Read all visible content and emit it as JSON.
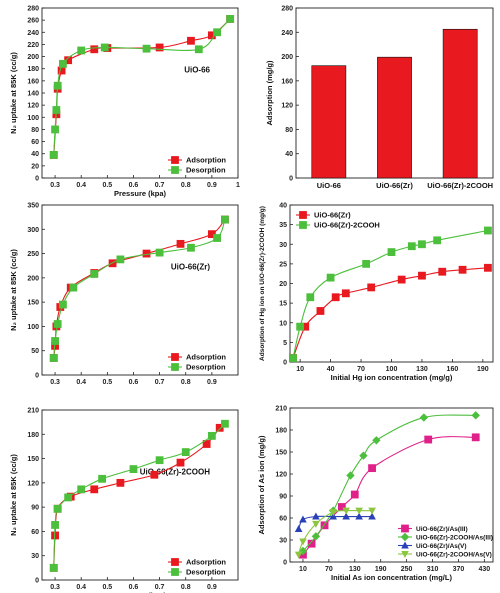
{
  "figure_caption": "",
  "chart_data": [
    {
      "id": "iso1",
      "type": "line",
      "annotation": "UiO-66",
      "xlabel": "Pressure (kpa)",
      "ylabel": "N₂ uptake at 85K (cc/g)",
      "xlim": [
        0.25,
        1.0
      ],
      "ylim": [
        0,
        280
      ],
      "xticks": [
        0.3,
        0.4,
        0.5,
        0.6,
        0.7,
        0.8,
        0.9,
        1.0
      ],
      "yticks": [
        0,
        20,
        40,
        60,
        80,
        100,
        120,
        140,
        160,
        180,
        200,
        220,
        240,
        260,
        280
      ],
      "legend": "bottom-right",
      "grid": false,
      "series": [
        {
          "name": "Adsorption",
          "color": "#e8191f",
          "marker": "square",
          "x": [
            0.295,
            0.305,
            0.31,
            0.325,
            0.35,
            0.45,
            0.5,
            0.7,
            0.82,
            0.9,
            0.97
          ],
          "y": [
            38,
            105,
            147,
            177,
            194,
            212,
            214,
            215,
            226,
            235,
            262
          ]
        },
        {
          "name": "Desorption",
          "color": "#4cbf3c",
          "marker": "square",
          "x": [
            0.295,
            0.3,
            0.305,
            0.31,
            0.33,
            0.4,
            0.49,
            0.65,
            0.85,
            0.92,
            0.97
          ],
          "y": [
            38,
            80,
            112,
            152,
            188,
            210,
            215,
            213,
            212,
            240,
            262
          ]
        }
      ]
    },
    {
      "id": "bar1",
      "type": "bar",
      "xlabel": "",
      "ylabel": "Adsorption (mg/g)",
      "ylim": [
        0,
        280
      ],
      "yticks": [
        0,
        40,
        80,
        120,
        160,
        200,
        240,
        280
      ],
      "grid": false,
      "categories": [
        "UiO-66",
        "UiO-66(Zr)",
        "UiO-66(Zr)-2COOH"
      ],
      "values": [
        185,
        199,
        245
      ],
      "color": "#e8191f"
    },
    {
      "id": "iso2",
      "type": "line",
      "annotation": "UiO-66(Zr)",
      "xlabel": "",
      "ylabel": "N₂ uptake at 85K (cc/g)",
      "xlim": [
        0.25,
        1.0
      ],
      "ylim": [
        0,
        350
      ],
      "xticks": [
        0.3,
        0.4,
        0.5,
        0.6,
        0.7,
        0.8,
        0.9
      ],
      "yticks": [
        0,
        50,
        100,
        150,
        200,
        250,
        300,
        350
      ],
      "legend": "bottom-right",
      "grid": false,
      "series": [
        {
          "name": "Adsorption",
          "color": "#e8191f",
          "marker": "square",
          "x": [
            0.295,
            0.3,
            0.305,
            0.32,
            0.36,
            0.45,
            0.52,
            0.65,
            0.78,
            0.9,
            0.95
          ],
          "y": [
            35,
            60,
            100,
            140,
            180,
            210,
            230,
            250,
            270,
            290,
            320
          ]
        },
        {
          "name": "Desorption",
          "color": "#4cbf3c",
          "marker": "square",
          "x": [
            0.295,
            0.3,
            0.31,
            0.33,
            0.37,
            0.45,
            0.55,
            0.7,
            0.82,
            0.92,
            0.95
          ],
          "y": [
            35,
            70,
            105,
            145,
            180,
            208,
            238,
            252,
            262,
            282,
            320
          ]
        }
      ]
    },
    {
      "id": "hg",
      "type": "line",
      "xlabel": "Initial Hg ion concentration (mg/g)",
      "ylabel": "Adsorption of Hg ion on UiO-66(Zr)-2COOH (mg/g)",
      "xlim": [
        0,
        200
      ],
      "ylim": [
        0,
        40
      ],
      "xticks": [
        10,
        40,
        70,
        100,
        130,
        160,
        190
      ],
      "yticks": [
        0,
        5,
        10,
        15,
        20,
        25,
        30,
        35,
        40
      ],
      "legend": "top-left",
      "grid": false,
      "series": [
        {
          "name": "UiO-66(Zr)",
          "color": "#e8191f",
          "marker": "square",
          "x": [
            3,
            15,
            30,
            45,
            55,
            80,
            110,
            130,
            150,
            170,
            195
          ],
          "y": [
            1,
            9,
            13,
            16.5,
            17.5,
            19,
            21,
            22,
            23,
            23.5,
            24
          ]
        },
        {
          "name": "UiO-66(Zr)-2COOH",
          "color": "#4cbf3c",
          "marker": "square",
          "x": [
            3,
            10,
            20,
            40,
            75,
            100,
            120,
            130,
            145,
            195
          ],
          "y": [
            1,
            9,
            16.5,
            21.5,
            25,
            28,
            29.5,
            30,
            31,
            33.5
          ]
        }
      ]
    },
    {
      "id": "iso3",
      "type": "line",
      "annotation": "UiO-66(Zr)-2COOH",
      "xlabel": "Pressure (kpa)",
      "ylabel": "N₂ uptake at 85K (cc/g)",
      "xlim": [
        0.25,
        1.0
      ],
      "ylim": [
        0,
        210
      ],
      "xticks": [
        0.3,
        0.4,
        0.5,
        0.6,
        0.7,
        0.8,
        0.9
      ],
      "yticks": [
        0,
        30,
        60,
        90,
        120,
        150,
        180,
        210
      ],
      "legend": "bottom-right",
      "grid": false,
      "series": [
        {
          "name": "Adsorption",
          "color": "#e8191f",
          "marker": "square",
          "x": [
            0.295,
            0.3,
            0.31,
            0.36,
            0.45,
            0.55,
            0.68,
            0.78,
            0.88,
            0.93
          ],
          "y": [
            15,
            55,
            88,
            103,
            112,
            120,
            130,
            145,
            168,
            188
          ]
        },
        {
          "name": "Desorption",
          "color": "#4cbf3c",
          "marker": "square",
          "x": [
            0.295,
            0.3,
            0.31,
            0.35,
            0.4,
            0.48,
            0.6,
            0.7,
            0.8,
            0.9,
            0.95
          ],
          "y": [
            15,
            68,
            88,
            102,
            112,
            125,
            137,
            148,
            158,
            178,
            193
          ]
        }
      ]
    },
    {
      "id": "as",
      "type": "line",
      "xlabel": "Initial As ion concentration (mg/L)",
      "ylabel": "Adsorption of As ion  (mg/g)",
      "xlim": [
        -20,
        450
      ],
      "ylim": [
        0,
        210
      ],
      "xticks": [
        10,
        70,
        130,
        190,
        250,
        310,
        370,
        430
      ],
      "yticks": [
        0,
        30,
        60,
        90,
        120,
        150,
        180,
        210
      ],
      "legend": "bottom-right",
      "grid": false,
      "series": [
        {
          "name": "UiO-66(Zr)/As(III)",
          "color": "#e0218a",
          "marker": "square",
          "x": [
            10,
            30,
            60,
            100,
            130,
            170,
            300,
            410
          ],
          "y": [
            10,
            25,
            50,
            75,
            92,
            128,
            167,
            170
          ]
        },
        {
          "name": "UiO-66(Zr)-2COOH/As(III)",
          "color": "#4cbf3c",
          "marker": "diamond",
          "x": [
            10,
            40,
            80,
            120,
            150,
            180,
            290,
            410
          ],
          "y": [
            15,
            35,
            70,
            118,
            145,
            166,
            197,
            200
          ]
        },
        {
          "name": "UiO-66(Zr)/As(V)",
          "color": "#2a40b8",
          "marker": "triangle",
          "x": [
            0,
            10,
            40,
            80,
            110,
            140,
            170
          ],
          "y": [
            45,
            58,
            62,
            62,
            62,
            62,
            62
          ]
        },
        {
          "name": "UiO-66(Zr)-2COOH/As(V)",
          "color": "#8cc63f",
          "marker": "triangle-down",
          "x": [
            0,
            10,
            40,
            80,
            110,
            140,
            170
          ],
          "y": [
            10,
            28,
            52,
            68,
            70,
            70,
            70
          ]
        }
      ]
    }
  ]
}
